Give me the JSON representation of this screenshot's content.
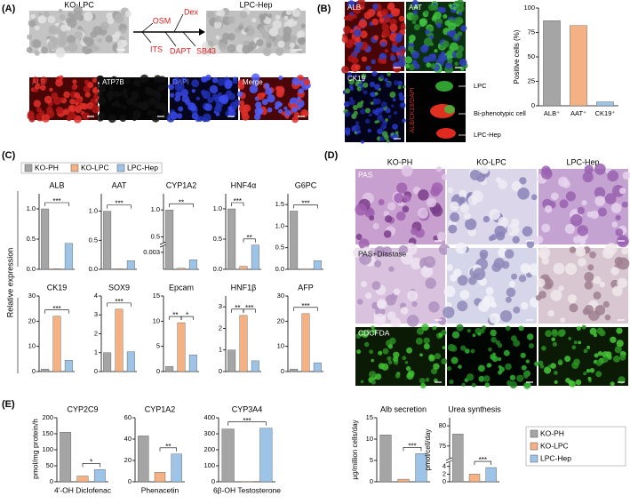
{
  "panels": {
    "A": "(A)",
    "B": "(B)",
    "C": "(C)",
    "D": "(D)",
    "E": "(E)"
  },
  "panel_A": {
    "phase": [
      "KO-LPC",
      "LPC-Hep"
    ],
    "factors_top": [
      "OSM",
      "Dex"
    ],
    "factors_bottom": [
      "ITS",
      "DAPT",
      "SB43"
    ],
    "stains": [
      "ALB",
      "ATP7B",
      "DAPI",
      "Merge"
    ]
  },
  "panel_B": {
    "stains": [
      "ALB",
      "AAT",
      "CK19"
    ],
    "merge": "ALB/CK19/DAPI",
    "cells": [
      "LPC",
      "Bi-phenotypic cell",
      "LPC-Hep"
    ]
  },
  "panel_C": {
    "ylabel": "Relative expression"
  },
  "panel_D": {
    "columns": [
      "KO-PH",
      "KO-LPC",
      "LPC-Hep"
    ],
    "rows": [
      "PAS",
      "PAS+Diastase",
      "CDCFDA"
    ]
  },
  "panel_E": {
    "ylabel": "pmol/mg protein/h"
  },
  "legends": [
    {
      "items": [
        {
          "name": "KO-PH",
          "color": "#a5a5a5"
        },
        {
          "name": "KO-LPC",
          "color": "#f4b183"
        },
        {
          "name": "LPC-Hep",
          "color": "#9dc3e6"
        }
      ]
    },
    {
      "items": [
        {
          "name": "KO-PH",
          "color": "#a5a5a5"
        },
        {
          "name": "KO-LPC",
          "color": "#f4b183"
        },
        {
          "name": "LPC-Hep",
          "color": "#9dc3e6"
        }
      ]
    }
  ],
  "chart_data": [
    {
      "type": "bar",
      "ylabel": "Positive cells (%)",
      "categories": [
        "ALB⁺",
        "AAT⁺",
        "CK19⁺"
      ],
      "values": [
        87,
        82,
        4
      ],
      "colors": [
        "#a5a5a5",
        "#f4b183",
        "#9dc3e6"
      ],
      "ylim": [
        0,
        100
      ],
      "yticks": [
        0,
        25,
        50,
        75,
        100
      ]
    },
    {
      "type": "bar",
      "title": "ALB",
      "values": [
        1.0,
        0.01,
        0.43
      ],
      "colors": [
        "#a5a5a5",
        "#f4b183",
        "#9dc3e6"
      ],
      "ylim": [
        0,
        1.25
      ],
      "yticks": [
        {
          "value": 0,
          "label": "0.0"
        },
        0.5,
        {
          "value": 1,
          "label": "1.0"
        }
      ],
      "annotations": [
        "***"
      ]
    },
    {
      "type": "bar",
      "title": "AAT",
      "values": [
        1.0,
        0.01,
        0.15
      ],
      "colors": [
        "#a5a5a5",
        "#f4b183",
        "#9dc3e6"
      ],
      "ylim": [
        0,
        1.3
      ],
      "yticks": [
        {
          "value": 0,
          "label": "0.0"
        },
        0.5,
        {
          "value": 1,
          "label": "1.0"
        }
      ],
      "annotations": [
        "***"
      ]
    },
    {
      "type": "bar",
      "title": "CYP1A2",
      "values": [
        1.0,
        0.0002,
        0.0017
      ],
      "colors": [
        "#a5a5a5",
        "#f4b183",
        "#9dc3e6"
      ],
      "ylim": [
        0,
        1.3
      ],
      "ybreak": [
        0.004,
        0.4
      ],
      "yticks": [
        0.003,
        0.5,
        {
          "value": 1,
          "label": "1.0"
        }
      ],
      "annotations": [
        "**"
      ]
    },
    {
      "type": "bar",
      "title": "HNF4α",
      "values": [
        1.0,
        0.05,
        0.4
      ],
      "colors": [
        "#a5a5a5",
        "#f4b183",
        "#9dc3e6"
      ],
      "ylim": [
        0,
        1.25
      ],
      "yticks": [
        {
          "value": 0,
          "label": "0.0"
        },
        0.5,
        {
          "value": 1,
          "label": "1.0"
        }
      ],
      "annotations": [
        "***",
        "**"
      ]
    },
    {
      "type": "bar",
      "title": "G6PC",
      "values": [
        1.35,
        0.01,
        0.2
      ],
      "colors": [
        "#a5a5a5",
        "#f4b183",
        "#9dc3e6"
      ],
      "ylim": [
        0,
        1.75
      ],
      "yticks": [
        {
          "value": 0,
          "label": "0.0"
        },
        0.5,
        {
          "value": 1,
          "label": "1.0"
        },
        1.5
      ],
      "annotations": [
        "***"
      ]
    },
    {
      "type": "bar",
      "title": "CK19",
      "values": [
        1,
        22,
        4.5
      ],
      "colors": [
        "#a5a5a5",
        "#f4b183",
        "#9dc3e6"
      ],
      "ylim": [
        0,
        30
      ],
      "yticks": [
        0,
        10,
        20,
        30
      ],
      "annotations": [
        "***"
      ]
    },
    {
      "type": "bar",
      "title": "SOX9",
      "values": [
        1,
        3.3,
        1.05
      ],
      "colors": [
        "#a5a5a5",
        "#f4b183",
        "#9dc3e6"
      ],
      "ylim": [
        0,
        4
      ],
      "yticks": [
        0,
        1,
        2,
        3,
        4
      ],
      "annotations": [
        "***"
      ]
    },
    {
      "type": "bar",
      "title": "Epcam",
      "values": [
        1,
        9.7,
        3.3
      ],
      "colors": [
        "#a5a5a5",
        "#f4b183",
        "#9dc3e6"
      ],
      "ylim": [
        0,
        15
      ],
      "yticks": [
        0,
        5,
        10,
        15
      ],
      "annotations": [
        "**",
        "*"
      ]
    },
    {
      "type": "bar",
      "title": "HNF1β",
      "values": [
        1,
        2.6,
        0.5
      ],
      "colors": [
        "#a5a5a5",
        "#f4b183",
        "#9dc3e6"
      ],
      "ylim": [
        0,
        3.5
      ],
      "yticks": [
        0,
        1,
        2,
        3
      ],
      "annotations": [
        "**",
        "***"
      ]
    },
    {
      "type": "bar",
      "title": "AFP",
      "values": [
        1,
        23,
        3.5
      ],
      "colors": [
        "#a5a5a5",
        "#f4b183",
        "#9dc3e6"
      ],
      "ylim": [
        0,
        30
      ],
      "yticks": [
        0,
        10,
        20,
        30
      ],
      "annotations": [
        "***"
      ]
    },
    {
      "type": "bar",
      "title": "CYP2C9",
      "xlabel": "4′-OH Diclofenac",
      "values": [
        155,
        18,
        38
      ],
      "colors": [
        "#a5a5a5",
        "#f4b183",
        "#9dc3e6"
      ],
      "ylim": [
        0,
        200
      ],
      "yticks": [
        0,
        50,
        100,
        150,
        200
      ],
      "annotations": [
        "*"
      ],
      "span": [
        1,
        2
      ]
    },
    {
      "type": "bar",
      "title": "CYP1A2",
      "xlabel": "Phenacetin",
      "values": [
        43,
        9,
        26
      ],
      "colors": [
        "#a5a5a5",
        "#f4b183",
        "#9dc3e6"
      ],
      "ylim": [
        0,
        60
      ],
      "yticks": [
        0,
        20,
        40,
        60
      ],
      "annotations": [
        "**"
      ],
      "span": [
        1,
        2
      ]
    },
    {
      "type": "bar",
      "title": "CYP3A4",
      "xlabel": "6β-OH Testosterone",
      "values": [
        330,
        2,
        335
      ],
      "colors": [
        "#a5a5a5",
        "#f4b183",
        "#9dc3e6"
      ],
      "ylim": [
        0,
        400
      ],
      "yticks": [
        0,
        100,
        200,
        300,
        400
      ],
      "annotations": [
        "***"
      ]
    },
    {
      "type": "bar",
      "title": "Alb secretion",
      "ylabel": "μg/million cells/day",
      "values": [
        11,
        0.6,
        6.6
      ],
      "colors": [
        "#a5a5a5",
        "#f4b183",
        "#9dc3e6"
      ],
      "ylim": [
        0,
        15
      ],
      "yticks": [
        0,
        5,
        10,
        15
      ],
      "annotations": [
        "***"
      ],
      "span": [
        1,
        2
      ]
    },
    {
      "type": "bar",
      "title": "Urea synthesis",
      "ylabel": "pmol/cell/day",
      "values": [
        78,
        2,
        3.7
      ],
      "colors": [
        "#a5a5a5",
        "#f4b183",
        "#9dc3e6"
      ],
      "ylim": [
        0,
        82
      ],
      "ybreak": [
        5,
        72
      ],
      "yticks": [
        0,
        2,
        4,
        75,
        80
      ],
      "annotations": [
        "***"
      ],
      "span": [
        1,
        2
      ]
    }
  ]
}
